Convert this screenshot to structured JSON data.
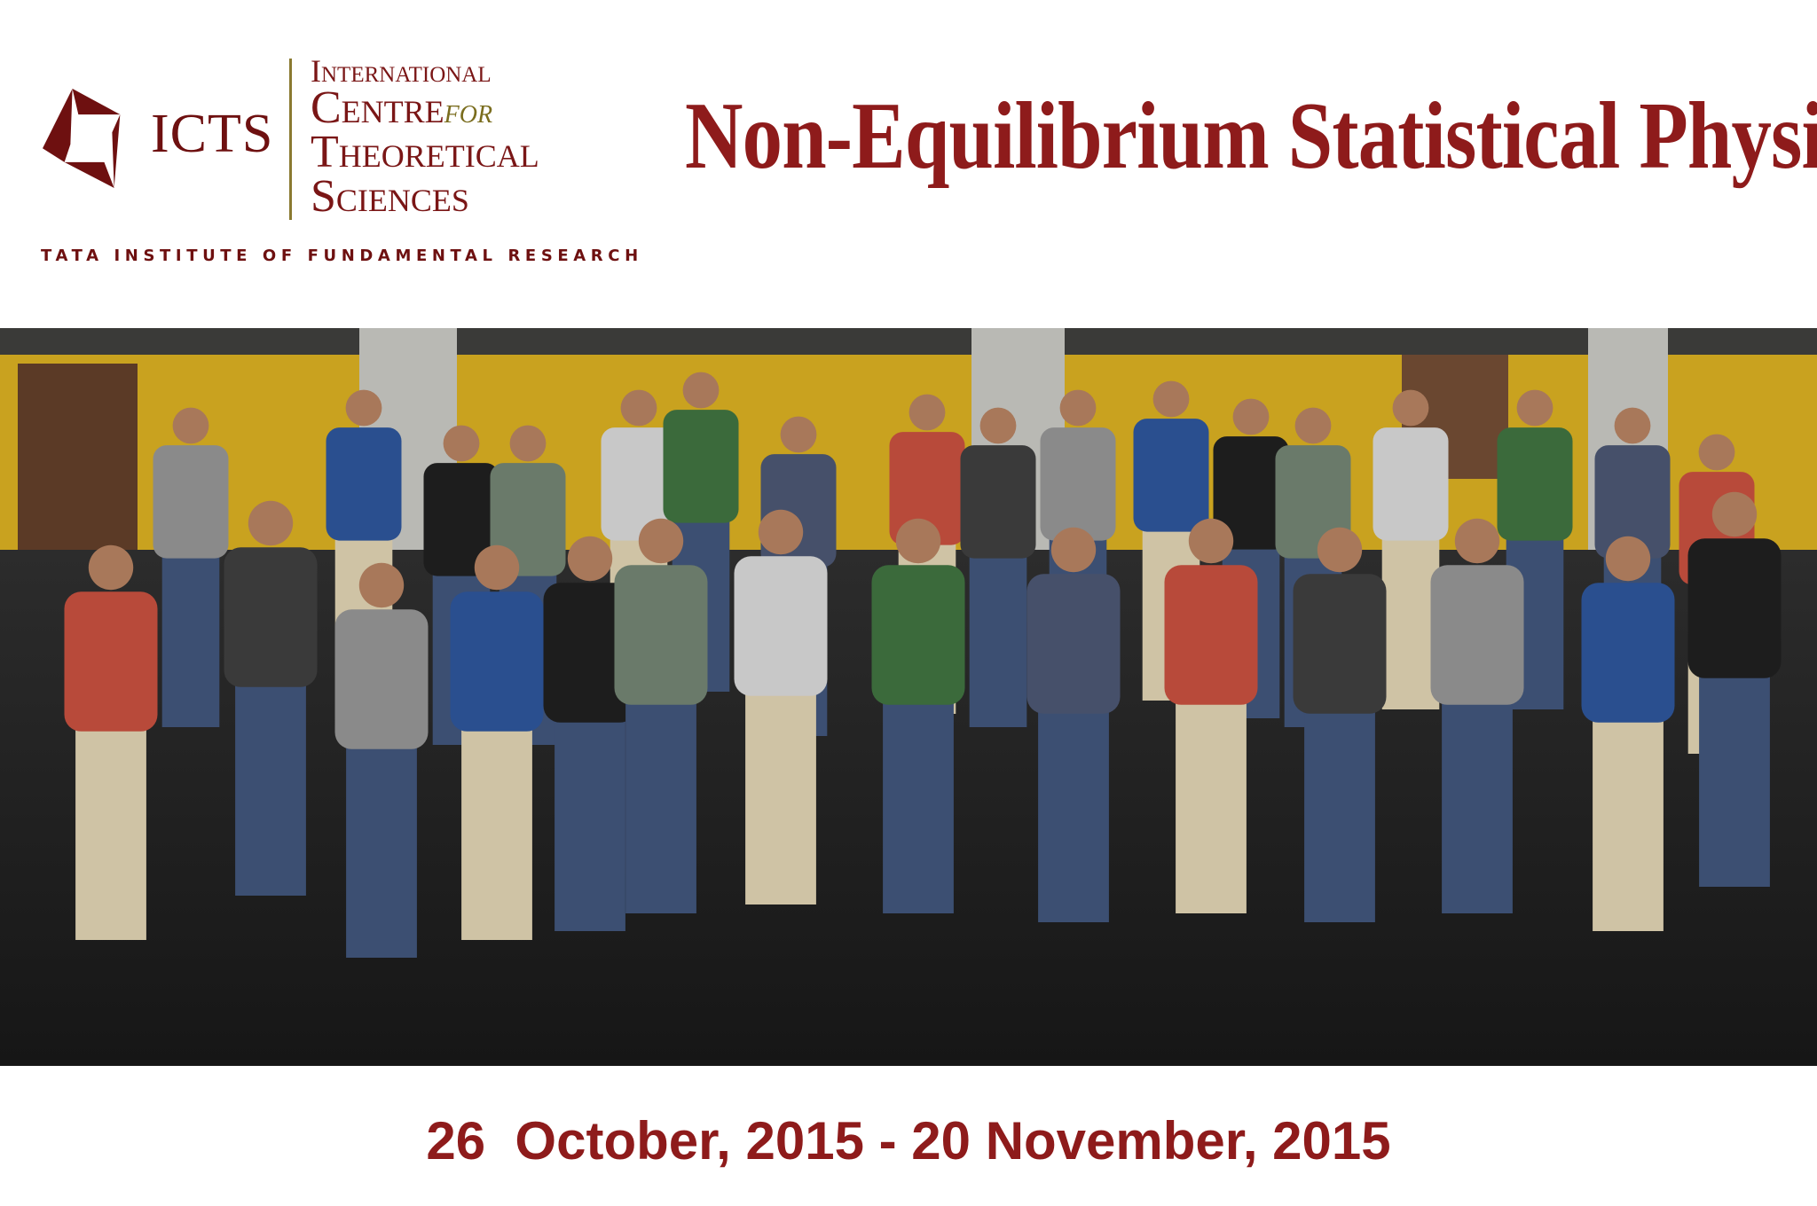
{
  "logo": {
    "acronym": "ICTS",
    "line1": "International",
    "line2": "Centre",
    "line2_italic": "for",
    "line3": "Theoretical",
    "line4": "Sciences",
    "parent": "TATA INSTITUTE OF FUNDAMENTAL RESEARCH",
    "color": "#6e1010",
    "accent": "#8a7a30"
  },
  "title": "Non-Equilibrium Statistical Physics",
  "photo": {
    "description_colors": {
      "wall": "#c9a21f",
      "floor": "#1e1e1e",
      "pillar": "#b9b9b4"
    }
  },
  "dates": "26  October, 2015 - 20 November, 2015",
  "title_color": "#8e1b1b"
}
